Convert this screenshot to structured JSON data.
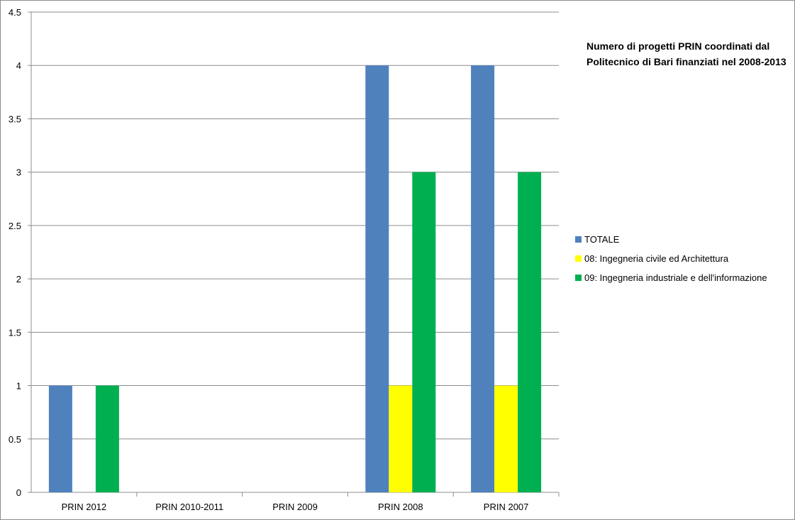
{
  "chart_data": {
    "type": "bar",
    "title": "Numero di progetti PRIN coordinati dal Politecnico di Bari finanziati nel 2008-2013",
    "categories": [
      "PRIN 2012",
      "PRIN 2010-2011",
      "PRIN 2009",
      "PRIN 2008",
      "PRIN 2007"
    ],
    "series": [
      {
        "name": "TOTALE",
        "color": "#4f81bd",
        "values": [
          1,
          0,
          0,
          4,
          4
        ]
      },
      {
        "name": "08: Ingegneria civile ed Architettura",
        "color": "#ffff00",
        "values": [
          0,
          0,
          0,
          1,
          1
        ]
      },
      {
        "name": "09: Ingegneria industriale e dell'informazione",
        "color": "#00b050",
        "values": [
          1,
          0,
          0,
          3,
          3
        ]
      }
    ],
    "yticks": [
      "0",
      "0.5",
      "1",
      "1.5",
      "2",
      "2.5",
      "3",
      "3.5",
      "4",
      "4.5"
    ],
    "ylim": [
      0,
      4.5
    ],
    "xlabel": "",
    "ylabel": "",
    "grid": true,
    "legend_position": "right"
  }
}
